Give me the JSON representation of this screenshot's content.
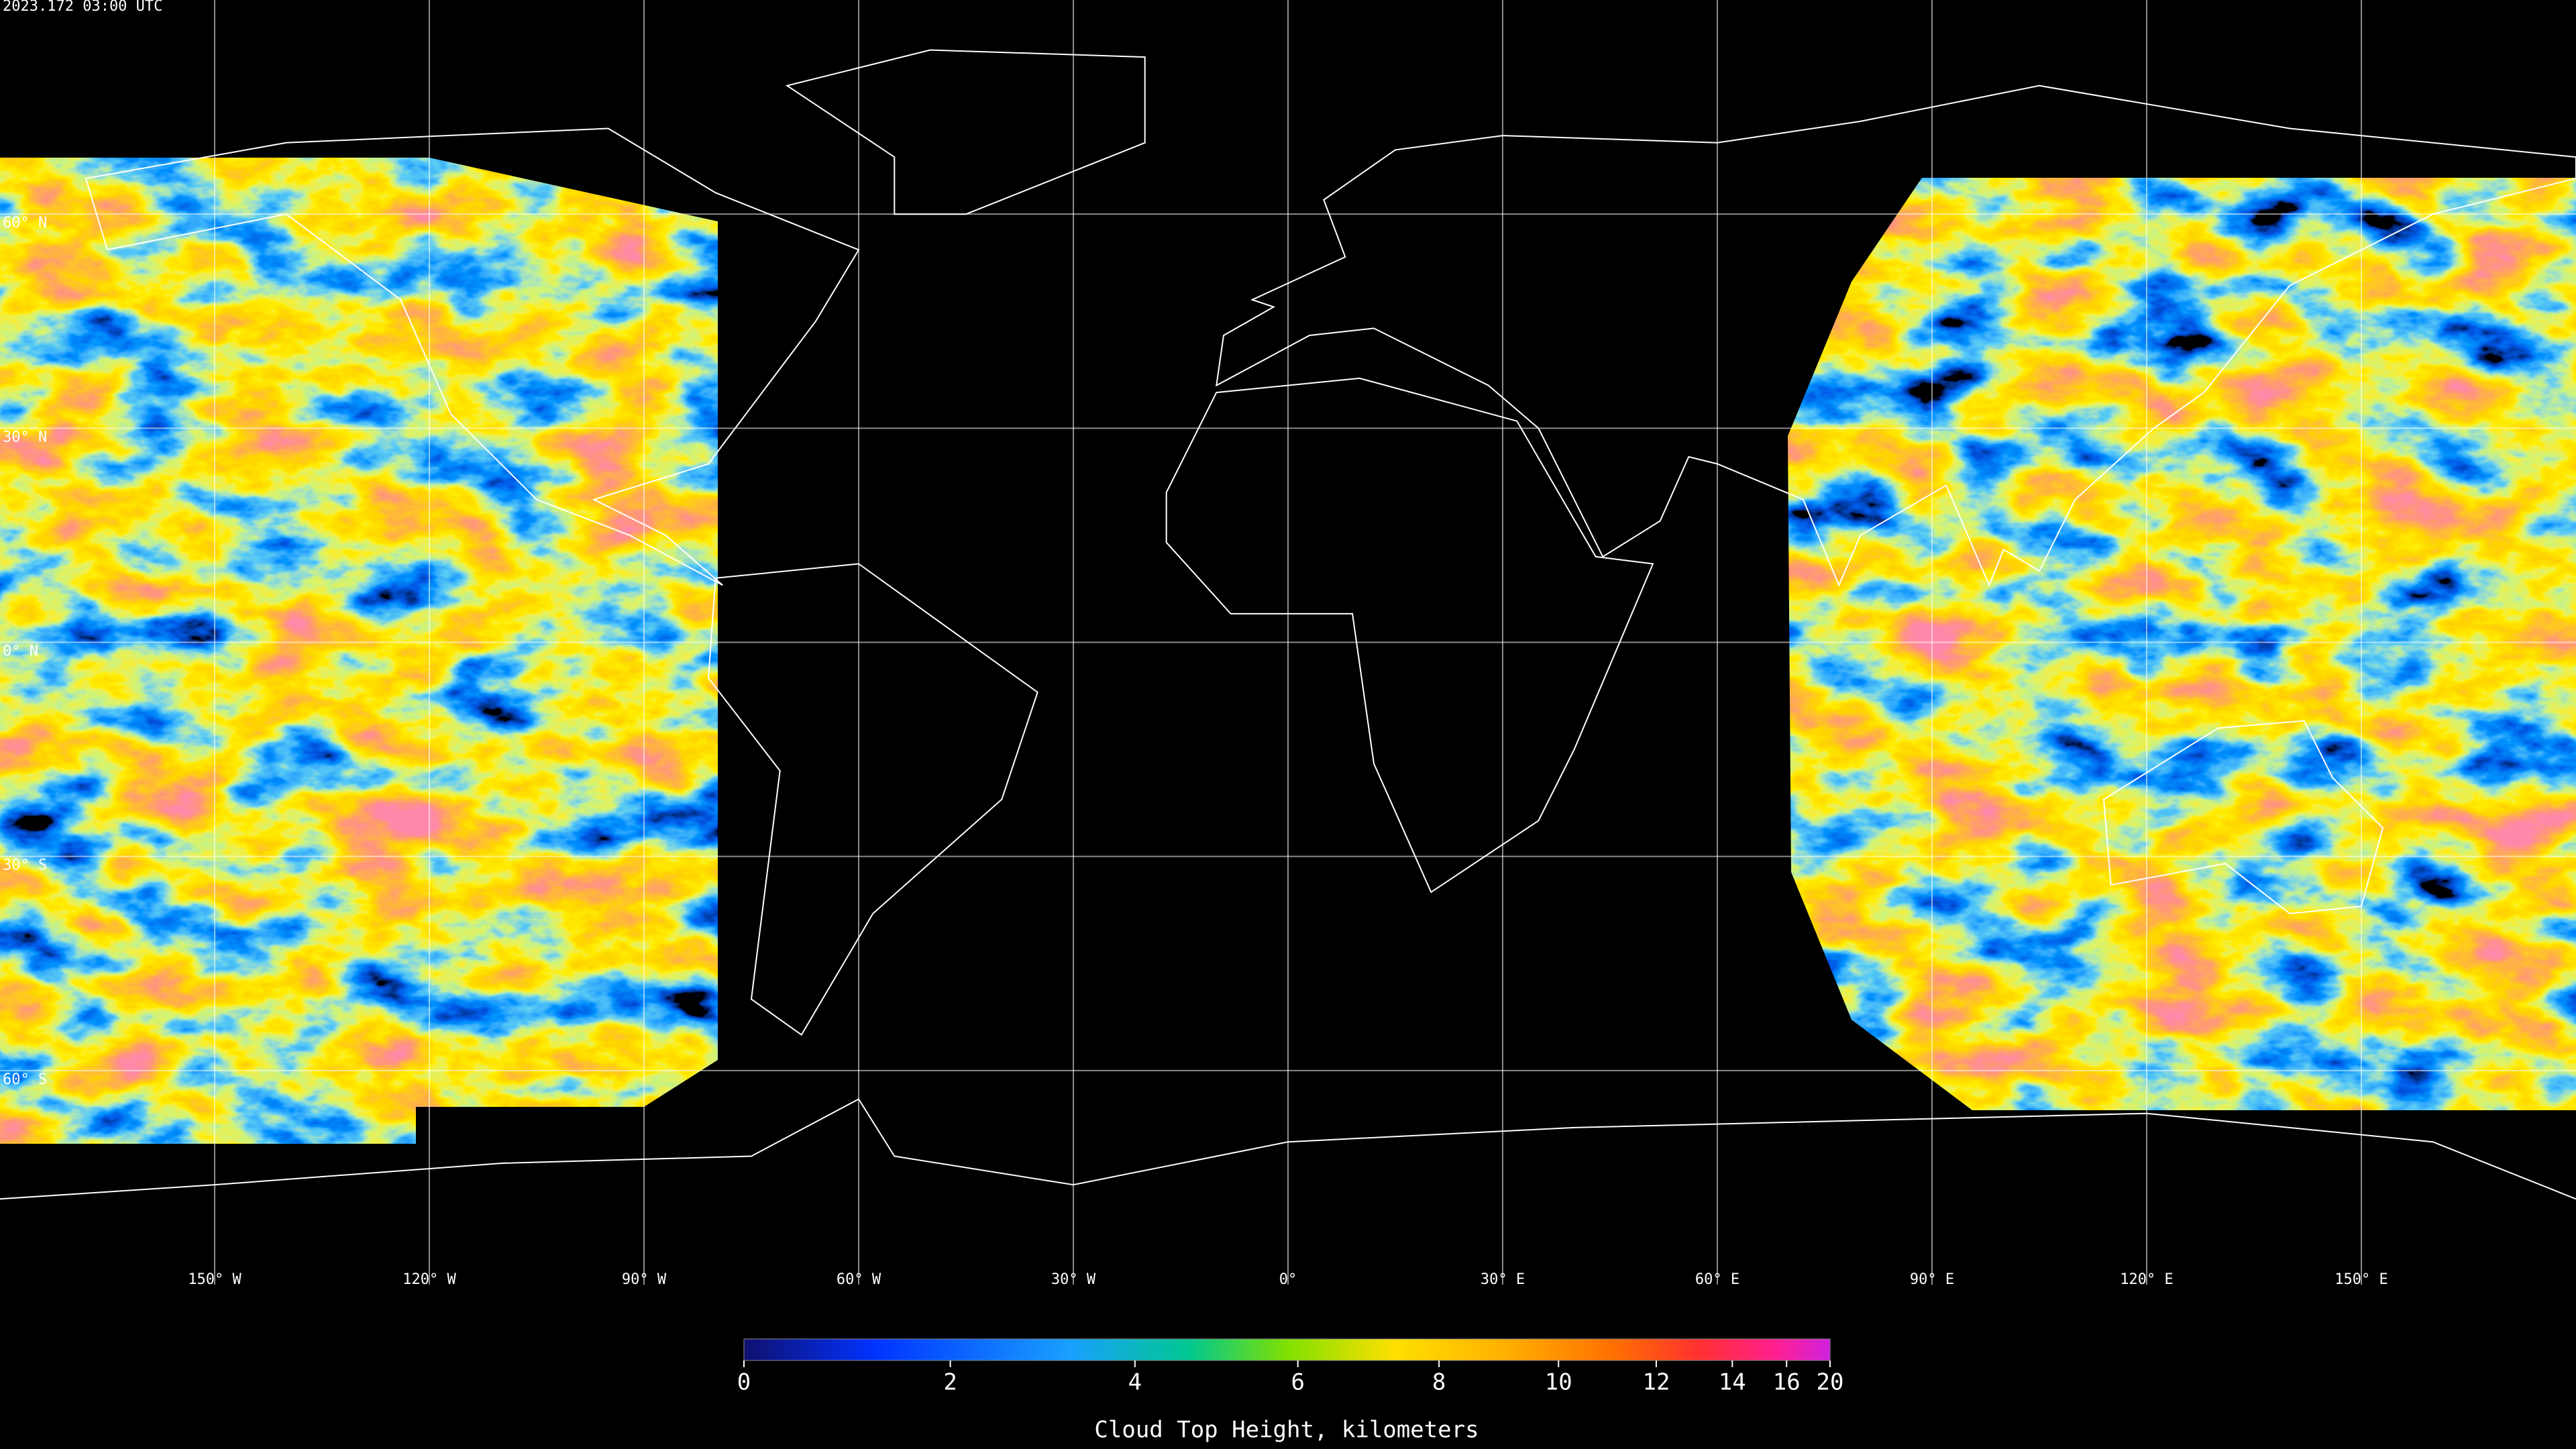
{
  "header": {
    "timestamp": "2023.172 03:00 UTC"
  },
  "map": {
    "lat_lines": [
      {
        "value": 60,
        "label": "60° N"
      },
      {
        "value": 30,
        "label": "30° N"
      },
      {
        "value": 0,
        "label": "0° N"
      },
      {
        "value": -30,
        "label": "30° S"
      },
      {
        "value": -60,
        "label": "60° S"
      }
    ],
    "lon_lines": [
      {
        "value": -150,
        "label": "150° W"
      },
      {
        "value": -120,
        "label": "120° W"
      },
      {
        "value": -90,
        "label": "90° W"
      },
      {
        "value": -60,
        "label": "60° W"
      },
      {
        "value": -30,
        "label": "30° W"
      },
      {
        "value": 0,
        "label": "0°"
      },
      {
        "value": 30,
        "label": "30° E"
      },
      {
        "value": 60,
        "label": "60° E"
      },
      {
        "value": 90,
        "label": "90° E"
      },
      {
        "value": 120,
        "label": "120° E"
      },
      {
        "value": 150,
        "label": "150° E"
      }
    ]
  },
  "colorbar": {
    "title": "Cloud Top Height, kilometers",
    "lim": [
      0,
      20
    ],
    "ticks": [
      0,
      2,
      4,
      6,
      8,
      10,
      12,
      14,
      16,
      20
    ]
  }
}
